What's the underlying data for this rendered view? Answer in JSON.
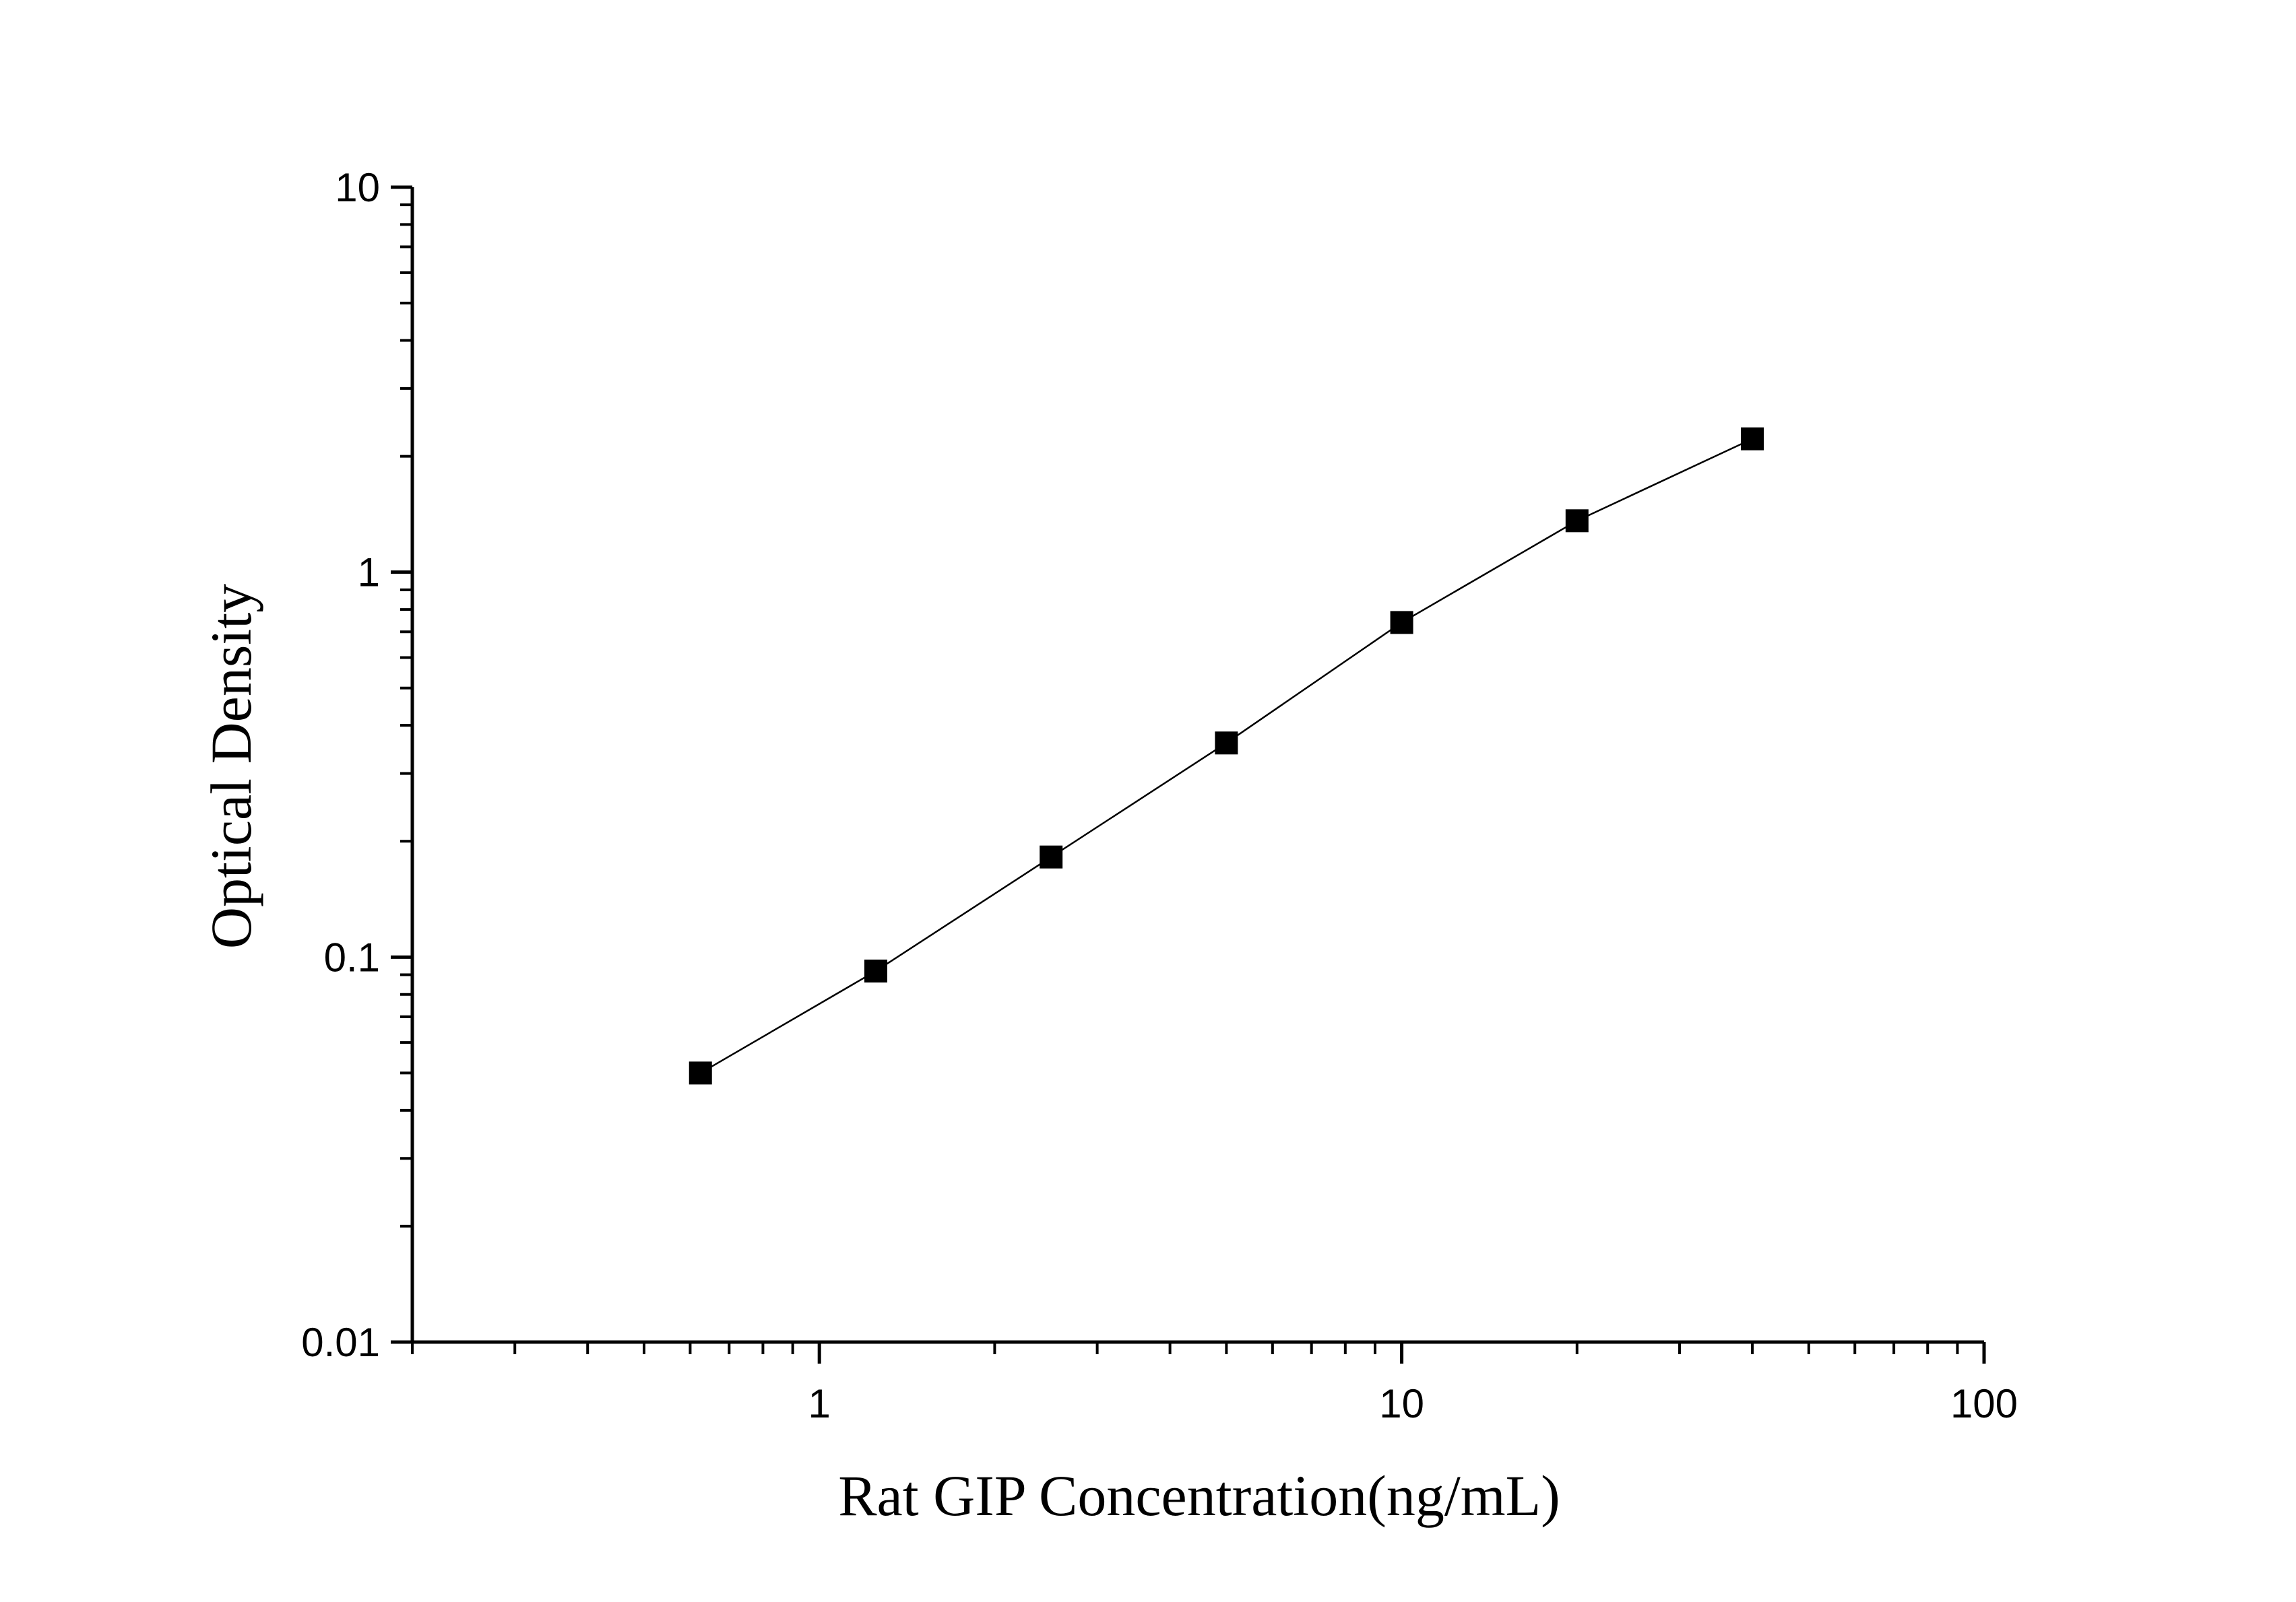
{
  "chart_data": {
    "type": "line",
    "xlabel": "Rat GIP Concentration(ng/mL)",
    "ylabel": "Optical Density",
    "xscale": "log",
    "yscale": "log",
    "xlim": [
      0.2,
      100
    ],
    "ylim": [
      0.01,
      10
    ],
    "x_ticks": [
      1,
      10,
      100
    ],
    "x_tick_labels": [
      "1",
      "10",
      "100"
    ],
    "y_ticks": [
      0.01,
      0.1,
      1,
      10
    ],
    "y_tick_labels": [
      "0.01",
      "0.1",
      "1",
      "10"
    ],
    "grid": false,
    "marker": "square",
    "color": "#000000",
    "series": [
      {
        "x": [
          0.625,
          1.25,
          2.5,
          5,
          10,
          20,
          40
        ],
        "y": [
          0.05,
          0.092,
          0.182,
          0.36,
          0.74,
          1.36,
          2.22
        ]
      }
    ]
  }
}
